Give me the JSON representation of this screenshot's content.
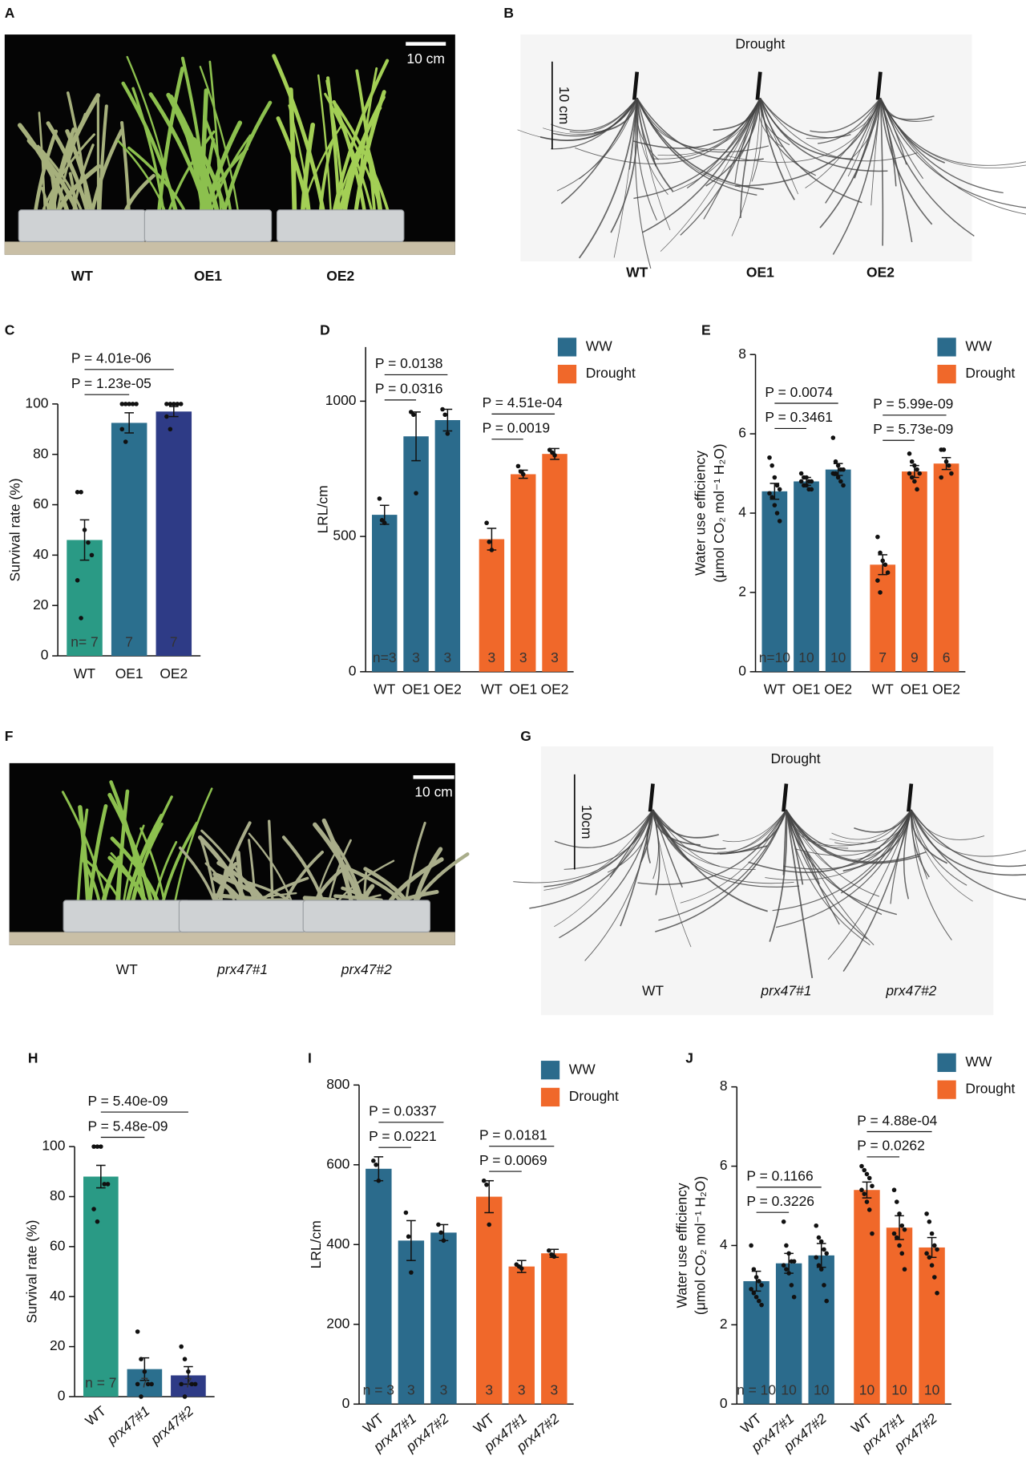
{
  "photos": [
    {
      "panel": "A",
      "scale": "10 cm",
      "labels": [
        "WT",
        "OE1",
        "OE2"
      ]
    },
    {
      "panel": "B",
      "title": "Drought",
      "scale": "10 cm",
      "labels": [
        "WT",
        "OE1",
        "OE2"
      ]
    },
    {
      "panel": "F",
      "scale": "10 cm",
      "labels": [
        "WT",
        "prx47#1",
        "prx47#2"
      ]
    },
    {
      "panel": "G",
      "title": "Drought",
      "scale": "10cm",
      "labels": [
        "WT",
        "prx47#1",
        "prx47#2"
      ]
    }
  ],
  "chart_data": [
    {
      "type": "bar",
      "panel": "C",
      "ylabel": "Survival rate (%)",
      "categories": [
        "WT",
        "OE1",
        "OE2"
      ],
      "ylim": [
        0,
        100
      ],
      "yticks": [
        0,
        20,
        40,
        60,
        80,
        100
      ],
      "series": [
        {
          "colors": [
            "#2a9a85",
            "#2b6f8e",
            "#2e3b86"
          ],
          "values": [
            46,
            92.5,
            97
          ],
          "errors": [
            8,
            4,
            2
          ],
          "points": [
            [
              65,
              65,
              50,
              45,
              40,
              30,
              15
            ],
            [
              100,
              100,
              100,
              100,
              100,
              90,
              85
            ],
            [
              100,
              100,
              100,
              100,
              100,
              95,
              90
            ]
          ],
          "n_labels": [
            "n= 7",
            "7",
            "7"
          ],
          "p_labels": [
            "P = 4.01e-06",
            "P = 1.23e-05"
          ]
        }
      ]
    },
    {
      "type": "bar",
      "panel": "D",
      "ylabel": "LRL/cm",
      "categories": [
        "WT",
        "OE1",
        "OE2"
      ],
      "ylim": [
        0,
        1200
      ],
      "yticks": [
        0,
        500,
        1000
      ],
      "series": [
        {
          "name": "WW",
          "color": "#2b6b8c",
          "values": [
            580,
            870,
            930
          ],
          "errors": [
            35,
            90,
            40
          ],
          "points": [
            [
              640,
              560,
              550
            ],
            [
              960,
              950,
              660
            ],
            [
              970,
              950,
              880
            ]
          ],
          "n_labels": [
            "n=3",
            "3",
            "3"
          ],
          "p_labels": [
            "P = 0.0138",
            "P = 0.0316"
          ]
        },
        {
          "name": "Drought",
          "color": "#f0682a",
          "values": [
            490,
            730,
            805
          ],
          "errors": [
            40,
            15,
            20
          ],
          "points": [
            [
              550,
              480,
              450
            ],
            [
              760,
              740,
              730
            ],
            [
              820,
              810,
              800
            ]
          ],
          "n_labels": [
            "3",
            "3",
            "3"
          ],
          "p_labels": [
            "P = 4.51e-04",
            "P = 0.0019"
          ]
        }
      ]
    },
    {
      "type": "bar",
      "panel": "E",
      "ylabel": [
        "Water use efficiency",
        "(μmol CO₂ mol⁻¹ H₂O)"
      ],
      "categories": [
        "WT",
        "OE1",
        "OE2"
      ],
      "ylim": [
        0,
        8
      ],
      "yticks": [
        0,
        2,
        4,
        6,
        8
      ],
      "series": [
        {
          "name": "WW",
          "color": "#2b6b8c",
          "values": [
            4.55,
            4.8,
            5.1
          ],
          "errors": [
            0.2,
            0.1,
            0.15
          ],
          "points": [
            [
              5.4,
              5.2,
              4.9,
              4.7,
              4.6,
              4.5,
              4.4,
              4.2,
              4.0,
              3.8
            ],
            [
              5.0,
              4.9,
              4.9,
              4.8,
              4.8,
              4.8,
              4.7,
              4.7,
              4.6,
              4.6
            ],
            [
              5.9,
              5.3,
              5.2,
              5.1,
              5.1,
              5.0,
              5.0,
              4.9,
              4.8,
              4.7
            ]
          ],
          "n_labels": [
            "n=10",
            "10",
            "10"
          ],
          "p_labels": [
            "P = 0.0074",
            "P = 0.3461"
          ]
        },
        {
          "name": "Drought",
          "color": "#f0682a",
          "values": [
            2.7,
            5.05,
            5.25
          ],
          "errors": [
            0.25,
            0.15,
            0.15
          ],
          "points": [
            [
              3.4,
              3.0,
              2.8,
              2.7,
              2.5,
              2.3,
              2.0
            ],
            [
              5.5,
              5.3,
              5.2,
              5.1,
              5.0,
              5.0,
              4.9,
              4.8,
              4.6
            ],
            [
              5.6,
              5.6,
              5.3,
              5.2,
              5.0,
              4.9
            ]
          ],
          "n_labels": [
            "7",
            "9",
            "6"
          ],
          "p_labels": [
            "P = 5.99e-09",
            "P = 5.73e-09"
          ]
        }
      ]
    },
    {
      "type": "bar",
      "panel": "H",
      "ylabel": "Survival rate (%)",
      "categories": [
        "WT",
        "prx47#1",
        "prx47#2"
      ],
      "ylim": [
        0,
        100
      ],
      "yticks": [
        0,
        20,
        40,
        60,
        80,
        100
      ],
      "rotated_xticks": true,
      "series": [
        {
          "colors": [
            "#2a9a85",
            "#2b6f8e",
            "#2e3b86"
          ],
          "values": [
            88,
            11,
            8.5
          ],
          "errors": [
            4.5,
            4.5,
            3.5
          ],
          "points": [
            [
              100,
              100,
              100,
              85,
              85,
              75,
              70
            ],
            [
              26,
              15,
              10,
              5,
              5,
              5,
              0
            ],
            [
              20,
              15,
              10,
              5,
              5,
              5,
              0
            ]
          ],
          "n_labels": [
            "n = 7",
            "7",
            "7"
          ],
          "p_labels": [
            "P = 5.40e-09",
            "P = 5.48e-09"
          ]
        }
      ]
    },
    {
      "type": "bar",
      "panel": "I",
      "ylabel": "LRL/cm",
      "categories": [
        "WT",
        "prx47#1",
        "prx47#2"
      ],
      "ylim": [
        0,
        800
      ],
      "yticks": [
        0,
        200,
        400,
        600,
        800
      ],
      "rotated_xticks": true,
      "series": [
        {
          "name": "WW",
          "color": "#2b6b8c",
          "values": [
            590,
            410,
            430
          ],
          "errors": [
            30,
            50,
            20
          ],
          "points": [
            [
              610,
              600,
              560
            ],
            [
              480,
              420,
              330
            ],
            [
              450,
              430,
              410
            ]
          ],
          "n_labels": [
            "n = 3",
            "3",
            "3"
          ],
          "p_labels": [
            "P = 0.0337",
            "P = 0.0221"
          ]
        },
        {
          "name": "Drought",
          "color": "#f0682a",
          "values": [
            520,
            345,
            378
          ],
          "errors": [
            40,
            15,
            10
          ],
          "points": [
            [
              560,
              550,
              450
            ],
            [
              350,
              345,
              340
            ],
            [
              385,
              375,
              370
            ]
          ],
          "n_labels": [
            "3",
            "3",
            "3"
          ],
          "p_labels": [
            "P = 0.0181",
            "P = 0.0069"
          ]
        }
      ]
    },
    {
      "type": "bar",
      "panel": "J",
      "ylabel": [
        "Water use efficiency",
        "(μmol CO₂ mol⁻¹ H₂O)"
      ],
      "categories": [
        "WT",
        "prx47#1",
        "prx47#2"
      ],
      "ylim": [
        0,
        8
      ],
      "yticks": [
        0,
        2,
        4,
        6,
        8
      ],
      "rotated_xticks": true,
      "series": [
        {
          "name": "WW",
          "color": "#2b6b8c",
          "values": [
            3.1,
            3.55,
            3.75
          ],
          "errors": [
            0.25,
            0.25,
            0.3
          ],
          "points": [
            [
              4.0,
              3.4,
              3.2,
              3.1,
              3.0,
              2.9,
              2.8,
              2.7,
              2.6,
              2.5
            ],
            [
              4.6,
              4.0,
              3.8,
              3.6,
              3.6,
              3.5,
              3.4,
              3.3,
              3.0,
              2.7
            ],
            [
              4.5,
              4.2,
              4.1,
              3.9,
              3.8,
              3.7,
              3.5,
              3.4,
              3.0,
              2.6
            ]
          ],
          "n_labels": [
            "n = 10",
            "10",
            "10"
          ],
          "p_labels": [
            "P = 0.1166",
            "P = 0.3226"
          ]
        },
        {
          "name": "Drought",
          "color": "#f0682a",
          "values": [
            5.4,
            4.45,
            3.95
          ],
          "errors": [
            0.2,
            0.3,
            0.25
          ],
          "points": [
            [
              6.0,
              5.9,
              5.8,
              5.7,
              5.5,
              5.4,
              5.3,
              5.1,
              4.9,
              4.3
            ],
            [
              5.4,
              5.1,
              4.8,
              4.5,
              4.4,
              4.3,
              4.2,
              4.0,
              3.8,
              3.4
            ],
            [
              4.8,
              4.6,
              4.3,
              4.0,
              3.9,
              3.8,
              3.7,
              3.5,
              3.2,
              2.8
            ]
          ],
          "n_labels": [
            "10",
            "10",
            "10"
          ],
          "p_labels": [
            "P = 4.88e-04",
            "P = 0.0262"
          ]
        }
      ]
    }
  ]
}
